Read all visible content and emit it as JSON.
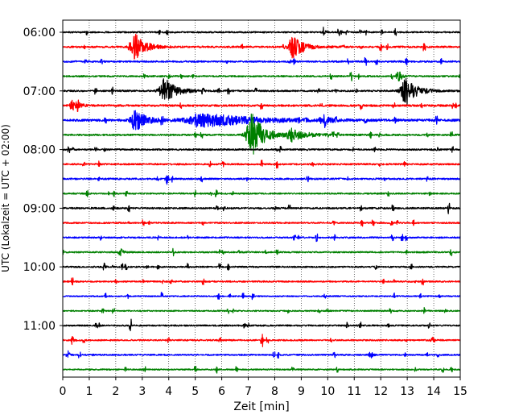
{
  "chart_data": {
    "type": "line",
    "title": "",
    "xlabel": "Zeit  [min]",
    "ylabel": "UTC (Lokalzeit = UTC + 02:00)",
    "xlim": [
      0,
      15
    ],
    "x_ticks": [
      "0",
      "1",
      "2",
      "3",
      "4",
      "5",
      "6",
      "7",
      "8",
      "9",
      "10",
      "11",
      "12",
      "13",
      "14",
      "15"
    ],
    "y_ticks": [
      "06:00",
      "07:00",
      "08:00",
      "09:00",
      "10:00",
      "11:00"
    ],
    "y_tick_rows": [
      0,
      4,
      8,
      12,
      16,
      20
    ],
    "grid": {
      "x": true,
      "y": false,
      "style": "dotted"
    },
    "line_minutes": 15,
    "colors": [
      "#000000",
      "#ff0000",
      "#0000ff",
      "#008000"
    ],
    "rows": [
      {
        "start": "06:00",
        "color": "#000000",
        "noise": 0.9,
        "events": [
          {
            "t": 9.85,
            "amp": 8,
            "dur": 0.15
          }
        ]
      },
      {
        "start": "06:15",
        "color": "#ff0000",
        "noise": 1.1,
        "events": [
          {
            "t": 2.75,
            "amp": 16,
            "dur": 1.0
          },
          {
            "t": 8.7,
            "amp": 14,
            "dur": 1.0
          }
        ]
      },
      {
        "start": "06:30",
        "color": "#0000ff",
        "noise": 1.0,
        "events": []
      },
      {
        "start": "06:45",
        "color": "#008000",
        "noise": 1.0,
        "events": [
          {
            "t": 12.65,
            "amp": 9,
            "dur": 0.35
          }
        ]
      },
      {
        "start": "07:00",
        "color": "#000000",
        "noise": 1.0,
        "events": [
          {
            "t": 3.85,
            "amp": 16,
            "dur": 1.1
          },
          {
            "t": 12.95,
            "amp": 16,
            "dur": 1.1
          }
        ]
      },
      {
        "start": "07:15",
        "color": "#ff0000",
        "noise": 1.2,
        "events": [
          {
            "t": 0.35,
            "amp": 7,
            "dur": 0.6
          }
        ]
      },
      {
        "start": "07:30",
        "color": "#0000ff",
        "noise": 1.4,
        "events": [
          {
            "t": 2.75,
            "amp": 15,
            "dur": 1.0
          },
          {
            "t": 5.5,
            "amp": 8,
            "dur": 4.5
          },
          {
            "t": 9.9,
            "amp": 8,
            "dur": 0.4
          }
        ]
      },
      {
        "start": "07:45",
        "color": "#008000",
        "noise": 1.0,
        "events": [
          {
            "t": 7.15,
            "amp": 26,
            "dur": 1.2
          },
          {
            "t": 8.7,
            "amp": 6,
            "dur": 1.5
          }
        ]
      },
      {
        "start": "08:00",
        "color": "#000000",
        "noise": 1.0,
        "events": []
      },
      {
        "start": "08:15",
        "color": "#ff0000",
        "noise": 1.0,
        "events": []
      },
      {
        "start": "08:30",
        "color": "#0000ff",
        "noise": 1.0,
        "events": [
          {
            "t": 3.95,
            "amp": 4,
            "dur": 0.2
          }
        ]
      },
      {
        "start": "08:45",
        "color": "#008000",
        "noise": 0.9,
        "events": []
      },
      {
        "start": "09:00",
        "color": "#000000",
        "noise": 1.0,
        "events": []
      },
      {
        "start": "09:15",
        "color": "#ff0000",
        "noise": 0.9,
        "events": []
      },
      {
        "start": "09:30",
        "color": "#0000ff",
        "noise": 0.9,
        "events": []
      },
      {
        "start": "09:45",
        "color": "#008000",
        "noise": 0.9,
        "events": [
          {
            "t": 2.15,
            "amp": 7,
            "dur": 0.25
          }
        ]
      },
      {
        "start": "10:00",
        "color": "#000000",
        "noise": 0.9,
        "events": [
          {
            "t": 1.55,
            "amp": 5,
            "dur": 0.2
          }
        ]
      },
      {
        "start": "10:15",
        "color": "#ff0000",
        "noise": 0.9,
        "events": []
      },
      {
        "start": "10:30",
        "color": "#0000ff",
        "noise": 0.8,
        "events": [
          {
            "t": 14.2,
            "amp": 3,
            "dur": 0.1
          }
        ]
      },
      {
        "start": "10:45",
        "color": "#008000",
        "noise": 0.8,
        "events": []
      },
      {
        "start": "11:00",
        "color": "#000000",
        "noise": 0.9,
        "events": [
          {
            "t": 6.85,
            "amp": 5,
            "dur": 0.1
          }
        ]
      },
      {
        "start": "11:15",
        "color": "#ff0000",
        "noise": 0.9,
        "events": [
          {
            "t": 0.35,
            "amp": 6,
            "dur": 0.2
          }
        ]
      },
      {
        "start": "11:30",
        "color": "#0000ff",
        "noise": 0.9,
        "events": [
          {
            "t": 11.6,
            "amp": 5,
            "dur": 0.25
          }
        ]
      },
      {
        "start": "11:45",
        "color": "#008000",
        "noise": 0.8,
        "events": []
      }
    ]
  }
}
